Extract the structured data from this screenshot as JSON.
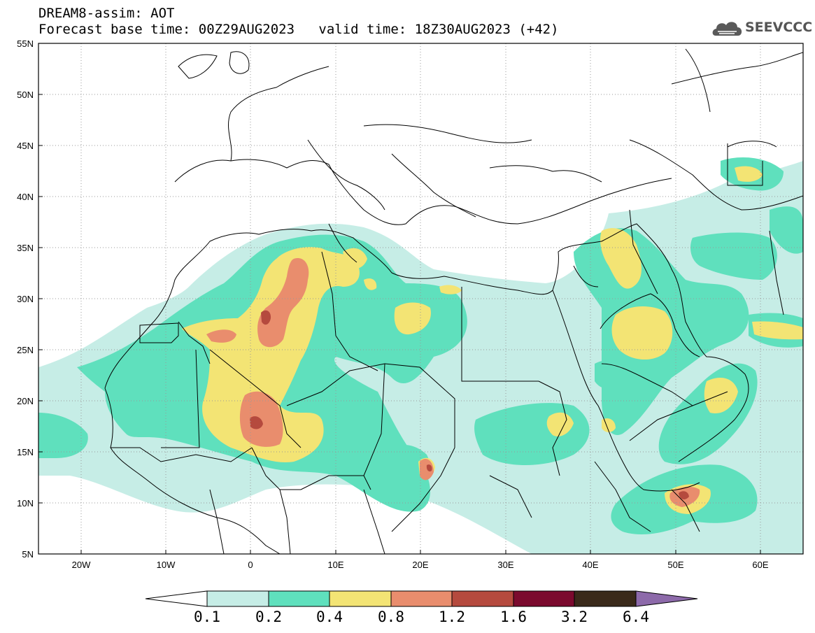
{
  "header": {
    "title": "DREAM8-assim: AOT",
    "base_time_label": "Forecast base time: 00Z29AUG2023",
    "valid_time_label": "valid time: 18Z30AUG2023 (+42)"
  },
  "logo": {
    "text": "SEEVCCC",
    "icon": "cloud-icon"
  },
  "map": {
    "projection": "lat-lon",
    "lon_range": [
      -25,
      65
    ],
    "lat_range": [
      5,
      55
    ],
    "lat_ticks": [
      "55N",
      "50N",
      "45N",
      "40N",
      "35N",
      "30N",
      "25N",
      "20N",
      "15N",
      "10N",
      "5N"
    ],
    "lon_ticks": [
      "20W",
      "10W",
      "0",
      "10E",
      "20E",
      "30E",
      "40E",
      "50E",
      "60E"
    ],
    "grid": "dotted"
  },
  "colorbar": {
    "labels": [
      "0.1",
      "0.2",
      "0.4",
      "0.8",
      "1.2",
      "1.6",
      "3.2",
      "6.4"
    ],
    "colors": [
      "#ffffff",
      "#c6ede6",
      "#5fe0bd",
      "#f3e474",
      "#e98d6d",
      "#b54a3e",
      "#7b0a2e",
      "#3a2a1a",
      "#8d6aaa"
    ]
  }
}
